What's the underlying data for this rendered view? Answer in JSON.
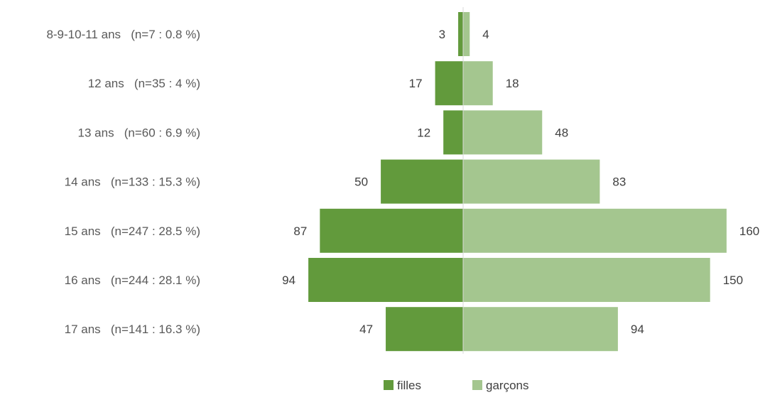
{
  "chart_data": {
    "type": "bar",
    "orientation": "horizontal",
    "layout": "population-pyramid",
    "categories": [
      "8-9-10-11 ans   (n=7 : 0.8 %)",
      "12 ans   (n=35 : 4 %)",
      "13 ans   (n=60 : 6.9 %)",
      "14 ans   (n=133 : 15.3 %)",
      "15 ans   (n=247 : 28.5 %)",
      "16 ans   (n=244 : 28.1 %)",
      "17 ans   (n=141 : 16.3 %)"
    ],
    "series": [
      {
        "name": "filles",
        "color": "#629a3c",
        "side": "left",
        "values": [
          3,
          17,
          12,
          50,
          87,
          94,
          47
        ]
      },
      {
        "name": "garçons",
        "color": "#a4c68f",
        "side": "right",
        "values": [
          4,
          18,
          48,
          83,
          160,
          150,
          94
        ]
      }
    ],
    "title": "",
    "xlabel": "",
    "ylabel": "",
    "data_labels": true,
    "grid": false,
    "legend_position": "bottom-center"
  }
}
